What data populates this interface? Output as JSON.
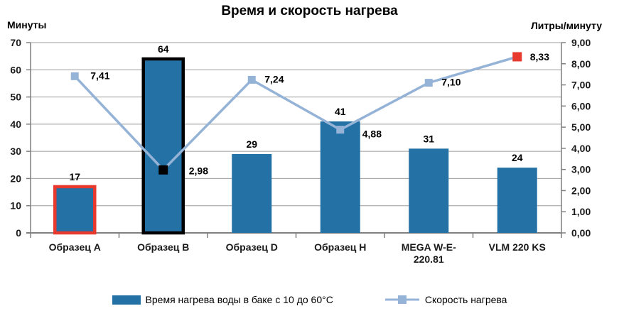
{
  "title": "Время и скорость нагрева",
  "colors": {
    "bar": "#2471A6",
    "line": "#95B3D7",
    "highlight_red": "#E8392F",
    "highlight_black": "#000000",
    "grid": "#9C9C9C",
    "axis": "#7F7F7F",
    "text": "#000000"
  },
  "left_axis": {
    "title": "Минуты",
    "min": 0,
    "max": 70,
    "step": 10,
    "tick_labels": [
      "0",
      "10",
      "20",
      "30",
      "40",
      "50",
      "60",
      "70"
    ]
  },
  "right_axis": {
    "title": "Литры/минуту",
    "min": 0,
    "max": 9,
    "step": 1,
    "tick_labels": [
      "0,00",
      "1,00",
      "2,00",
      "3,00",
      "4,00",
      "5,00",
      "6,00",
      "7,00",
      "8,00",
      "9,00"
    ]
  },
  "chart_data": {
    "type": "combo-bar-line",
    "title": "Время и скорость нагрева",
    "categories": [
      "Образец A",
      "Образец B",
      "Образец D",
      "Образец H",
      "MEGA W-E-\n220.81",
      "VLM 220 KS"
    ],
    "grid": true,
    "legend_position": "bottom",
    "ylim_left": [
      0,
      70
    ],
    "ylim_right": [
      0,
      9
    ],
    "series": [
      {
        "name": "Время нагрева воды в баке с 10 до 60°С",
        "type": "bar",
        "axis": "left",
        "values": [
          17,
          64,
          29,
          41,
          31,
          24
        ],
        "data_labels": [
          "17",
          "64",
          "29",
          "41",
          "31",
          "24"
        ],
        "color": "#2471A6",
        "outline_colors": [
          "#E8392F",
          "#000000",
          null,
          null,
          null,
          null
        ]
      },
      {
        "name": "Скорость нагрева",
        "type": "line",
        "axis": "right",
        "values": [
          7.41,
          2.98,
          7.24,
          4.88,
          7.1,
          8.33
        ],
        "data_labels": [
          "7,41",
          "2,98",
          "7,24",
          "4,88",
          "7,10",
          "8,33"
        ],
        "color": "#95B3D7",
        "marker_colors": [
          "#95B3D7",
          "#000000",
          "#95B3D7",
          "#95B3D7",
          "#95B3D7",
          "#E8392F"
        ]
      }
    ]
  },
  "legend": {
    "items": [
      {
        "label": "Время нагрева воды в баке с 10 до 60°С",
        "swatch": "bar"
      },
      {
        "label": "Скорость нагрева",
        "swatch": "line"
      }
    ]
  }
}
